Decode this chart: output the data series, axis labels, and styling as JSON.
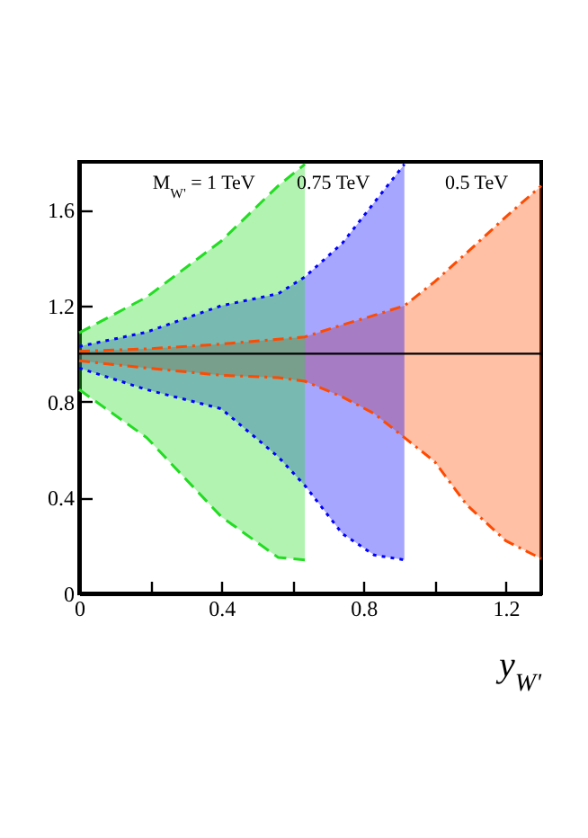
{
  "chart_data": {
    "type": "line",
    "xlabel": "y$_{W'}$",
    "xlim": [
      0,
      1.3
    ],
    "ylim": [
      0,
      1.8
    ],
    "xticks": [
      0,
      {
        "value": 0.2,
        "label": null
      },
      0.4,
      {
        "value": 0.6,
        "label": null
      },
      0.8,
      {
        "value": 1.0,
        "label": null
      },
      1.2
    ],
    "yticks": [
      0,
      0.4,
      0.8,
      1.2,
      1.6
    ],
    "series": [
      {
        "color": "#ff4a00",
        "line_style": "dashdot",
        "x": [
          0,
          0.19,
          0.4,
          0.56,
          0.635,
          0.74,
          0.83,
          0.915,
          1.0,
          1.09,
          1.2,
          1.3
        ],
        "values": [
          1.01,
          1.02,
          1.04,
          1.06,
          1.07,
          1.12,
          1.16,
          1.2,
          1.3,
          1.42,
          1.57,
          1.7
        ],
        "upper": [
          1.01,
          1.02,
          1.04,
          1.06,
          1.07,
          1.12,
          1.16,
          1.2,
          1.3,
          1.42,
          1.57,
          1.7
        ],
        "lower": [
          0.97,
          0.94,
          0.91,
          0.9,
          0.885,
          0.82,
          0.75,
          0.65,
          0.55,
          0.37,
          0.22,
          0.145
        ]
      },
      {
        "color": "#ff4a00",
        "line_style": "dashdot",
        "x": [
          0,
          0.19,
          0.4,
          0.56,
          0.635,
          0.74,
          0.83,
          0.915,
          1.0,
          1.09,
          1.2,
          1.3
        ],
        "values": [
          0.97,
          0.94,
          0.91,
          0.9,
          0.885,
          0.82,
          0.75,
          0.65,
          0.55,
          0.37,
          0.22,
          0.145
        ]
      },
      {
        "color": "#0000ff",
        "line_style": "dotted",
        "x": [
          0,
          0.19,
          0.4,
          0.56,
          0.635,
          0.74,
          0.83,
          0.915
        ],
        "values": [
          1.03,
          1.09,
          1.2,
          1.25,
          1.32,
          1.46,
          1.63,
          1.79
        ],
        "upper": [
          1.03,
          1.09,
          1.2,
          1.25,
          1.32,
          1.46,
          1.63,
          1.79
        ],
        "lower": [
          0.94,
          0.85,
          0.77,
          0.57,
          0.45,
          0.25,
          0.16,
          0.14
        ]
      },
      {
        "color": "#0000ff",
        "line_style": "dotted",
        "x": [
          0,
          0.19,
          0.4,
          0.56,
          0.635,
          0.74,
          0.83,
          0.915
        ],
        "values": [
          0.94,
          0.85,
          0.77,
          0.57,
          0.45,
          0.25,
          0.16,
          0.14
        ]
      },
      {
        "color": "#22dd22",
        "line_style": "dashed",
        "x": [
          0,
          0.19,
          0.4,
          0.56,
          0.635
        ],
        "values": [
          1.087,
          1.236,
          1.47,
          1.7,
          1.79
        ],
        "upper": [
          1.087,
          1.236,
          1.47,
          1.7,
          1.79
        ],
        "lower": [
          0.85,
          0.65,
          0.32,
          0.15,
          0.14
        ]
      },
      {
        "color": "#22dd22",
        "line_style": "dashed",
        "x": [
          0,
          0.19,
          0.4,
          0.56,
          0.635
        ],
        "values": [
          0.85,
          0.65,
          0.32,
          0.15,
          0.14
        ]
      }
    ],
    "ref_lines": [
      {
        "axis": "y",
        "value": 1,
        "color": "#000000"
      }
    ],
    "grid": false,
    "annotations": [
      "M$_{W'}$ = 1 TeV",
      "0.75 TeV",
      "0.5 TeV"
    ]
  }
}
